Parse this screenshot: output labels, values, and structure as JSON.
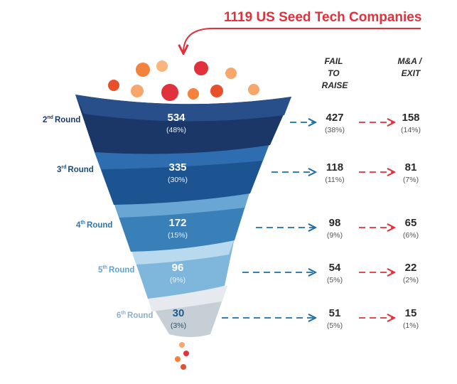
{
  "title": {
    "number": "1119",
    "text": "US Seed Tech Companies"
  },
  "headers": {
    "fail": [
      "FAIL",
      "TO",
      "RAISE"
    ],
    "exit": [
      "M&A /",
      "EXIT"
    ]
  },
  "colors": {
    "accent_red": "#e0313c",
    "arrow_blue": "#1f6fa3",
    "dark_text": "#2a2a2a"
  },
  "rounds": [
    {
      "ordinal": "2",
      "suffix": "nd",
      "word": "Round",
      "total": "534",
      "total_pct": "(48%)",
      "fail": "427",
      "fail_pct": "(38%)",
      "exit": "158",
      "exit_pct": "(14%)",
      "color": "#1b3a6b",
      "label_color": "#1b3a6b"
    },
    {
      "ordinal": "3",
      "suffix": "rd",
      "word": "Round",
      "total": "335",
      "total_pct": "(30%)",
      "fail": "118",
      "fail_pct": "(11%)",
      "exit": "81",
      "exit_pct": "(7%)",
      "color": "#1e5590",
      "label_color": "#1e4a80"
    },
    {
      "ordinal": "4",
      "suffix": "th",
      "word": "Round",
      "total": "172",
      "total_pct": "(15%)",
      "fail": "98",
      "fail_pct": "(9%)",
      "exit": "65",
      "exit_pct": "(6%)",
      "color": "#3f86bd",
      "label_color": "#2f74ad"
    },
    {
      "ordinal": "5",
      "suffix": "th",
      "word": "Round",
      "total": "96",
      "total_pct": "(9%)",
      "fail": "54",
      "fail_pct": "(5%)",
      "exit": "22",
      "exit_pct": "(2%)",
      "color": "#8cc1e2",
      "label_color": "#5ea3d3"
    },
    {
      "ordinal": "6",
      "suffix": "th",
      "word": "Round",
      "total": "30",
      "total_pct": "(3%)",
      "fail": "51",
      "fail_pct": "(5%)",
      "exit": "15",
      "exit_pct": "(1%)",
      "color": "#d6dde3",
      "label_color": "#8fb0c8"
    }
  ]
}
